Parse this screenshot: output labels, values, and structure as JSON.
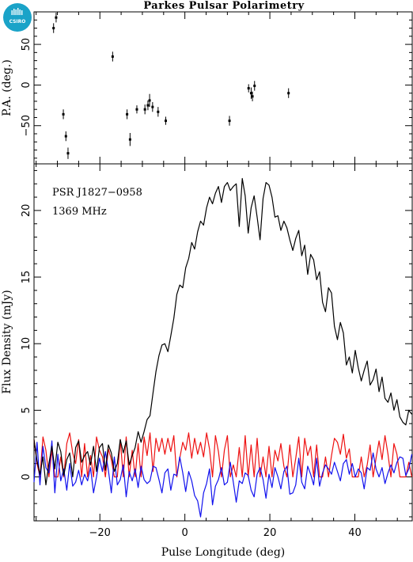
{
  "logo": {
    "text": "CSIRO",
    "color": "#1aa3c8"
  },
  "chart_data": [
    {
      "type": "scatter",
      "panel": "top",
      "title": "Parkes Pulsar Polarimetry",
      "xlabel": "",
      "ylabel": "P.A. (deg.)",
      "xlim": [
        -35.5,
        53.5
      ],
      "ylim": [
        -97,
        90
      ],
      "yticks_major": [
        -50,
        0,
        50
      ],
      "ytick_labels": [
        "−50",
        "0",
        "50"
      ],
      "xticks_major": [
        -20,
        0,
        20,
        40
      ],
      "points": [
        {
          "x": -30.9,
          "y": 70,
          "err": 6
        },
        {
          "x": -30.3,
          "y": 83,
          "err": 6
        },
        {
          "x": -28.6,
          "y": -36,
          "err": 6
        },
        {
          "x": -28.0,
          "y": -63,
          "err": 6
        },
        {
          "x": -27.5,
          "y": -84,
          "err": 7
        },
        {
          "x": -17.0,
          "y": 35,
          "err": 6
        },
        {
          "x": -13.6,
          "y": -36,
          "err": 6
        },
        {
          "x": -12.9,
          "y": -67,
          "err": 8
        },
        {
          "x": -11.3,
          "y": -30,
          "err": 5
        },
        {
          "x": -9.4,
          "y": -30,
          "err": 6
        },
        {
          "x": -8.7,
          "y": -25,
          "err": 6
        },
        {
          "x": -8.3,
          "y": -19,
          "err": 8
        },
        {
          "x": -7.6,
          "y": -27,
          "err": 6
        },
        {
          "x": -6.3,
          "y": -33,
          "err": 6
        },
        {
          "x": -4.5,
          "y": -44,
          "err": 5
        },
        {
          "x": 10.5,
          "y": -44,
          "err": 6
        },
        {
          "x": 15.0,
          "y": -4,
          "err": 5
        },
        {
          "x": 15.6,
          "y": -10,
          "err": 7
        },
        {
          "x": 15.9,
          "y": -14,
          "err": 6
        },
        {
          "x": 16.4,
          "y": -1,
          "err": 6
        },
        {
          "x": 24.4,
          "y": -10,
          "err": 6
        }
      ]
    },
    {
      "type": "line",
      "panel": "bottom",
      "xlabel": "Pulse Longitude (deg)",
      "ylabel": "Flux Density (mJy)",
      "xlim": [
        -35.5,
        53.5
      ],
      "ylim": [
        -3.3,
        23.5
      ],
      "yticks_major": [
        0,
        5,
        10,
        15,
        20
      ],
      "ytick_labels": [
        "0",
        "5",
        "10",
        "15",
        "20"
      ],
      "xticks_major": [
        -20,
        0,
        20,
        40
      ],
      "xtick_labels": [
        "−20",
        "0",
        "20",
        "40"
      ],
      "annotations": [
        "PSR J1827−0958",
        "1369 MHz"
      ],
      "x_start": -35.5,
      "x_step": 0.7,
      "series": [
        {
          "color": "#000000",
          "values": [
            2.8,
            1.2,
            0.2,
            1.5,
            -0.6,
            1.0,
            2.3,
            0.6,
            2.6,
            1.9,
            0.1,
            1.3,
            1.8,
            0.0,
            2.2,
            2.7,
            1.1,
            1.6,
            1.9,
            0.9,
            2.3,
            0.4,
            2.2,
            2.5,
            0.5,
            2.4,
            1.8,
            0.4,
            1.0,
            2.8,
            1.8,
            2.7,
            0.9,
            1.6,
            2.2,
            3.4,
            2.6,
            3.4,
            4.3,
            4.6,
            6.3,
            7.9,
            9.1,
            9.9,
            10.0,
            9.4,
            10.6,
            11.9,
            13.7,
            14.4,
            14.2,
            15.7,
            16.4,
            17.6,
            17.1,
            18.4,
            19.2,
            18.9,
            20.2,
            21.0,
            20.5,
            21.3,
            21.8,
            20.6,
            21.8,
            22.1,
            21.5,
            21.8,
            22.0,
            18.8,
            22.4,
            21.1,
            18.3,
            20.2,
            21.1,
            19.5,
            17.8,
            20.9,
            22.1,
            21.9,
            21.0,
            19.5,
            19.6,
            18.5,
            19.2,
            18.7,
            17.8,
            17.0,
            17.9,
            18.5,
            16.6,
            17.4,
            15.2,
            16.7,
            16.3,
            14.8,
            15.4,
            13.1,
            12.4,
            14.2,
            13.8,
            11.3,
            10.3,
            11.6,
            10.8,
            8.4,
            9.0,
            7.8,
            9.5,
            8.2,
            7.2,
            8.0,
            8.7,
            6.9,
            7.3,
            8.1,
            6.4,
            7.5,
            5.9,
            5.6,
            6.3,
            5.0,
            5.8,
            4.5,
            4.1,
            3.9,
            5.0,
            4.7,
            3.5,
            2.6,
            4.3,
            3.2,
            4.2,
            2.0,
            1.6,
            0.9,
            2.2,
            1.4,
            1.1,
            0.2,
            1.6,
            2.0,
            0.8,
            2.9,
            1.6,
            1.4,
            0.6,
            0.1,
            2.3,
            0.3,
            1.1,
            1.3,
            2.7,
            0.5,
            1.6,
            0.2,
            1.9
          ]
        },
        {
          "color": "#ee1111",
          "values": [
            2.8,
            1.0,
            0.0,
            3.0,
            2.0,
            0.0,
            2.0,
            0.0,
            0.0,
            1.5,
            0.0,
            2.5,
            3.3,
            1.8,
            1.0,
            2.8,
            0.0,
            2.5,
            0.0,
            1.6,
            0.0,
            3.0,
            2.0,
            1.5,
            0.0,
            2.1,
            1.3,
            0.0,
            0.0,
            2.8,
            0.0,
            3.0,
            0.0,
            2.0,
            0.0,
            2.5,
            0.0,
            3.0,
            1.6,
            3.3,
            0.4,
            2.9,
            1.9,
            2.9,
            1.7,
            2.9,
            1.9,
            3.1,
            0.0,
            1.4,
            2.6,
            2.0,
            3.3,
            1.4,
            2.9,
            1.7,
            2.6,
            1.5,
            3.3,
            2.1,
            0.0,
            3.1,
            1.9,
            0.0,
            2.0,
            3.1,
            0.0,
            0.9,
            0.0,
            2.2,
            0.0,
            3.1,
            0.0,
            2.4,
            0.0,
            2.9,
            0.0,
            1.5,
            0.0,
            2.3,
            0.0,
            2.0,
            1.2,
            2.5,
            0.8,
            0.0,
            2.4,
            0.0,
            1.4,
            3.0,
            0.0,
            2.9,
            1.6,
            2.3,
            0.0,
            2.4,
            0.0,
            0.0,
            1.5,
            0.0,
            1.6,
            2.9,
            2.6,
            1.7,
            3.2,
            1.4,
            2.1,
            0.0,
            0.0,
            0.0,
            1.5,
            0.0,
            0.9,
            2.4,
            0.0,
            1.4,
            2.7,
            1.3,
            3.1,
            1.7,
            0.0,
            2.5,
            1.7,
            0.0,
            0.0,
            0.0,
            1.1,
            0.0,
            1.0,
            0.0,
            0.0,
            0.0,
            0.0,
            0.0,
            0.0,
            0.0,
            0.0,
            1.0,
            1.3,
            0.7,
            1.8,
            1.1,
            2.1,
            1.6,
            0.9,
            2.2,
            1.1,
            0.0,
            1.1,
            0.0,
            1.1,
            0.7,
            0.0,
            0.0,
            0.0,
            0.0,
            0.0,
            0.0,
            0.0
          ]
        },
        {
          "color": "#1111ee",
          "values": [
            -0.4,
            2.6,
            -0.6,
            2.3,
            0.7,
            0.3,
            2.7,
            -1.2,
            1.7,
            -0.3,
            0.6,
            -1.0,
            1.0,
            -0.7,
            -0.4,
            0.5,
            -0.6,
            0.2,
            -0.3,
            0.7,
            -1.2,
            0.0,
            1.4,
            0.4,
            1.9,
            0.5,
            -1.2,
            1.5,
            -0.6,
            -0.2,
            0.9,
            -1.5,
            0.4,
            -0.3,
            0.6,
            -0.8,
            0.8,
            -0.2,
            -0.5,
            -0.3,
            0.8,
            0.7,
            -0.2,
            -1.2,
            0.3,
            0.6,
            -1.0,
            0.2,
            0.1,
            1.5,
            0.3,
            -1.1,
            0.4,
            -0.3,
            -1.4,
            -1.8,
            -3.0,
            -1.2,
            -0.5,
            0.6,
            -2.1,
            -0.7,
            -0.2,
            0.7,
            -0.6,
            -0.4,
            1.1,
            -0.4,
            -1.9,
            -0.3,
            -0.5,
            0.3,
            0.1,
            -1.0,
            -1.5,
            0.2,
            0.7,
            -0.2,
            -1.6,
            0.2,
            -0.8,
            0.7,
            0.0,
            -0.9,
            0.4,
            0.8,
            -1.3,
            -1.2,
            -0.6,
            1.4,
            -0.4,
            -0.9,
            0.8,
            0.2,
            -0.6,
            1.4,
            -0.7,
            0.3,
            0.9,
            0.6,
            0.2,
            1.1,
            0.4,
            -0.3,
            1.0,
            1.3,
            0.2,
            1.0,
            0.0,
            0.6,
            0.3,
            -0.9,
            0.7,
            0.5,
            1.8,
            0.6,
            0.0,
            0.7,
            -0.5,
            0.3,
            0.9,
            0.3,
            1.1,
            1.5,
            1.4,
            0.1,
            0.6,
            1.7,
            0.4,
            1.1,
            0.6,
            1.3,
            0.1,
            -0.2,
            1.5,
            0.8,
            1.7,
            0.9,
            0.0,
            0.4,
            -1.0,
            0.6,
            -0.5,
            -0.3,
            -0.1,
            0.2,
            1.0,
            0.0,
            0.3,
            1.3,
            0.1,
            0.7,
            1.3,
            0.8,
            0.5,
            1.2,
            1.4
          ]
        }
      ]
    }
  ]
}
